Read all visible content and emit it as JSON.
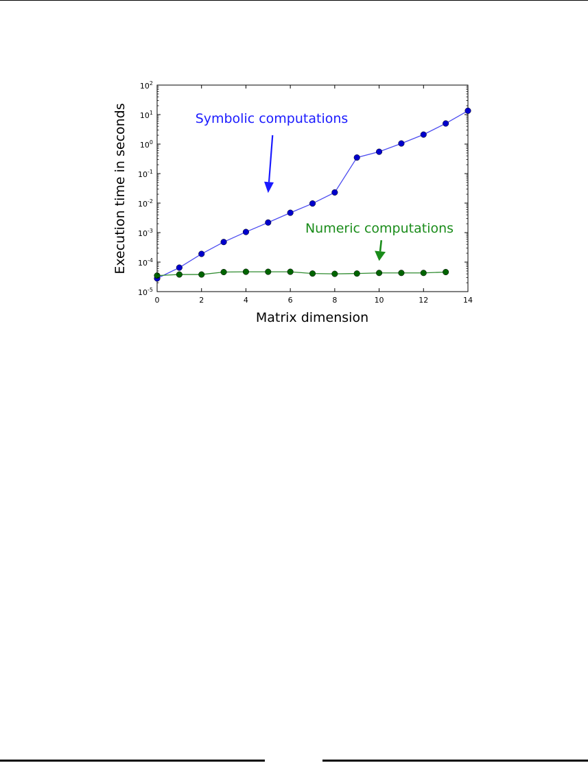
{
  "chart_data": {
    "type": "line",
    "xlabel": "Matrix dimension",
    "ylabel": "Execution time in seconds",
    "xlim": [
      0,
      14
    ],
    "ylim": [
      1e-05,
      100
    ],
    "yscale": "log",
    "x_ticks": [
      "0",
      "2",
      "4",
      "6",
      "8",
      "10",
      "12",
      "14"
    ],
    "y_ticks": [
      {
        "base": "10",
        "exp": "-5"
      },
      {
        "base": "10",
        "exp": "-4"
      },
      {
        "base": "10",
        "exp": "-3"
      },
      {
        "base": "10",
        "exp": "-2"
      },
      {
        "base": "10",
        "exp": "-1"
      },
      {
        "base": "10",
        "exp": "0"
      },
      {
        "base": "10",
        "exp": "1"
      },
      {
        "base": "10",
        "exp": "2"
      }
    ],
    "grid": false,
    "series": [
      {
        "color": "#0000cc",
        "line_color": "#4b4bf0",
        "x": [
          0,
          1,
          2,
          3,
          4,
          5,
          6,
          7,
          8,
          9,
          10,
          11,
          12,
          13,
          14
        ],
        "y": [
          2.8e-05,
          6.5e-05,
          0.00019,
          0.00048,
          0.00105,
          0.0022,
          0.0047,
          0.0097,
          0.023,
          0.35,
          0.55,
          1.05,
          2.1,
          5.0,
          13.5
        ]
      },
      {
        "color": "#006400",
        "line_color": "#2e8b2e",
        "x": [
          0,
          1,
          2,
          3,
          4,
          5,
          6,
          7,
          8,
          9,
          10,
          11,
          12,
          13
        ],
        "y": [
          3.5e-05,
          3.8e-05,
          3.8e-05,
          4.6e-05,
          4.7e-05,
          4.7e-05,
          4.7e-05,
          4.1e-05,
          4e-05,
          4.1e-05,
          4.3e-05,
          4.3e-05,
          4.3e-05,
          4.6e-05
        ]
      }
    ],
    "annotations": [
      {
        "text": "Symbolic computations",
        "color": "#1a1aff",
        "arrow_from": [
          5.2,
          2.0
        ],
        "arrow_to": [
          5.0,
          0.022
        ]
      },
      {
        "text": "Numeric computations",
        "color": "#1a8c1a",
        "arrow_from": [
          10.1,
          0.00055
        ],
        "arrow_to": [
          10.0,
          0.00011
        ]
      }
    ]
  }
}
